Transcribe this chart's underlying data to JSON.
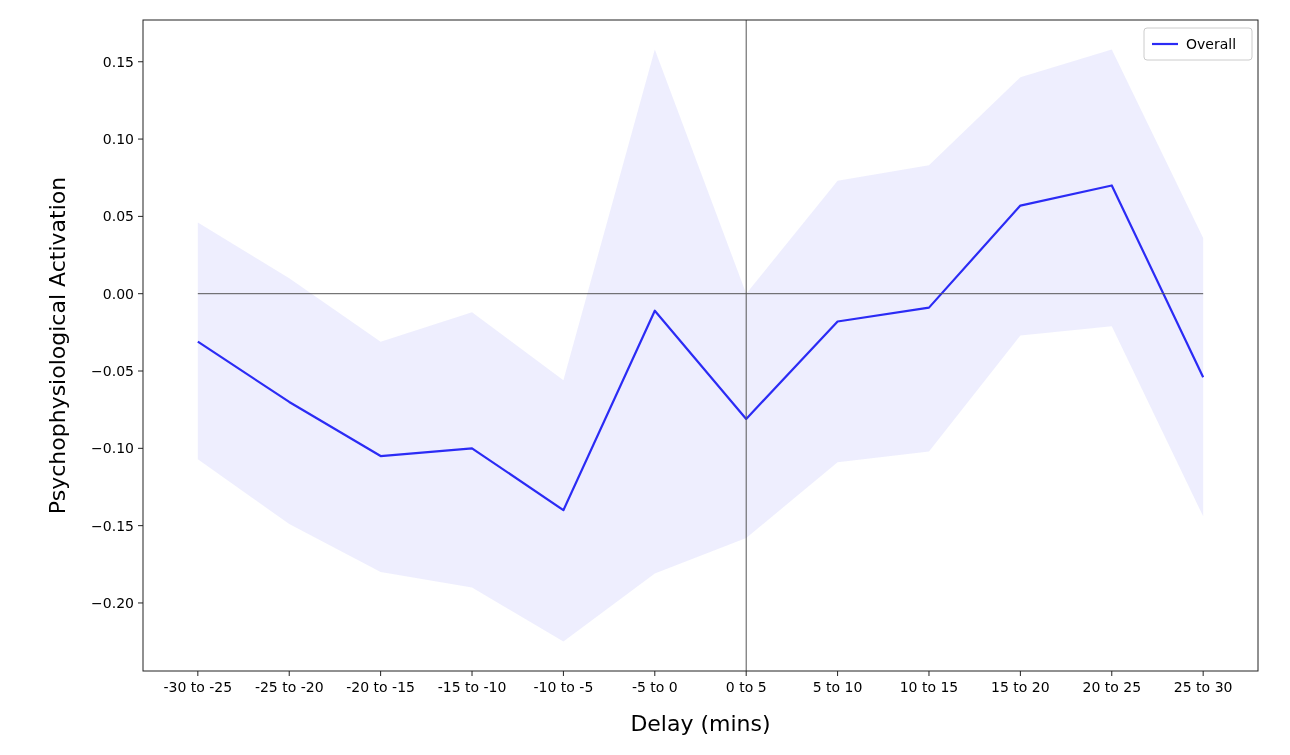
{
  "chart_data": {
    "type": "line",
    "xlabel": "Delay (mins)",
    "ylabel": "Psychophysiological Activation",
    "categories": [
      "-30 to -25",
      "-25 to -20",
      "-20 to -15",
      "-15 to -10",
      "-10 to -5",
      "-5 to 0",
      "0 to 5",
      "5 to 10",
      "10 to 15",
      "15 to 20",
      "20 to 25",
      "25 to 30"
    ],
    "series": [
      {
        "name": "Overall",
        "color": "#2b2bf5",
        "values": [
          -0.031,
          -0.07,
          -0.105,
          -0.1,
          -0.14,
          -0.011,
          -0.081,
          -0.018,
          -0.009,
          0.057,
          0.07,
          -0.054
        ],
        "lower": [
          -0.107,
          -0.149,
          -0.18,
          -0.19,
          -0.225,
          -0.181,
          -0.158,
          -0.109,
          -0.102,
          -0.027,
          -0.021,
          -0.144
        ],
        "upper": [
          0.046,
          0.01,
          -0.031,
          -0.012,
          -0.056,
          0.158,
          0.0,
          0.073,
          0.083,
          0.14,
          0.158,
          0.036
        ]
      }
    ],
    "ylim": [
      -0.244,
      0.177
    ],
    "yticks": [
      {
        "value": -0.2,
        "label": "−0.20"
      },
      {
        "value": -0.15,
        "label": "−0.15"
      },
      {
        "value": -0.1,
        "label": "−0.10"
      },
      {
        "value": -0.05,
        "label": "−0.05"
      },
      {
        "value": 0,
        "label": "0.00"
      },
      {
        "value": 0.05,
        "label": "0.05"
      },
      {
        "value": 0.1,
        "label": "0.10"
      },
      {
        "value": 0.15,
        "label": "0.15"
      }
    ],
    "ref_lines": [
      {
        "axis": "y",
        "value": 0,
        "color": "#555555"
      },
      {
        "axis": "x",
        "value": "0 to 5",
        "color": "#555555"
      }
    ],
    "legend": "top right",
    "grid": false
  }
}
